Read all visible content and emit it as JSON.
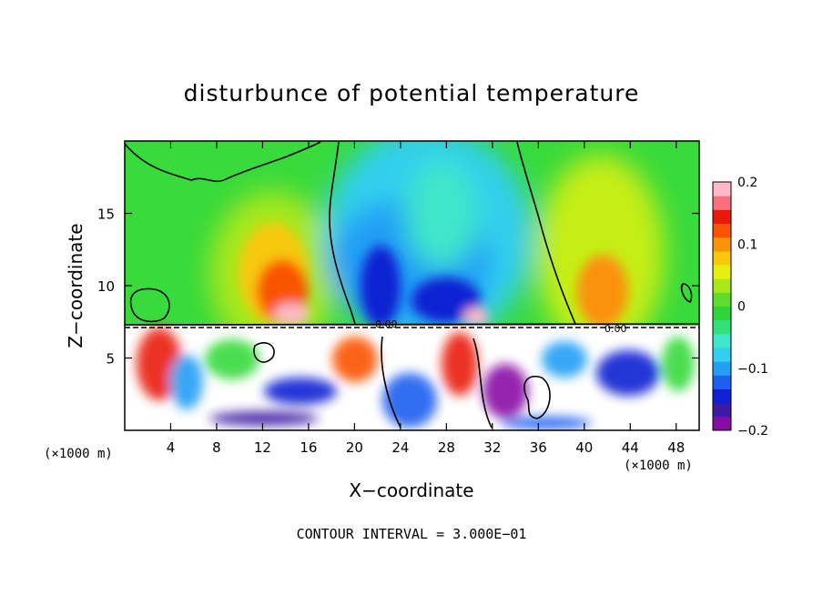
{
  "chart_data": {
    "type": "heatmap",
    "title": "disturbunce of potential temperature",
    "xlabel": "X−coordinate",
    "ylabel": "Z−coordinate",
    "x_unit_left": "(×1000 m)",
    "x_unit_right": "(×1000 m)",
    "footer": "CONTOUR INTERVAL = 3.000E−01",
    "xlim": [
      0,
      50
    ],
    "ylim": [
      0,
      20
    ],
    "x_ticks": [
      4,
      8,
      12,
      16,
      20,
      24,
      28,
      32,
      36,
      40,
      44,
      48
    ],
    "x_tick_labels": [
      "4",
      "8",
      "12",
      "16",
      "20",
      "24",
      "28",
      "32",
      "36",
      "40",
      "44",
      "48"
    ],
    "y_ticks": [
      5,
      10,
      15
    ],
    "y_tick_labels": [
      "5",
      "10",
      "15"
    ],
    "colorbar": {
      "range": [
        -0.2,
        0.2
      ],
      "labeled_ticks": [
        0.2,
        0.1,
        0,
        -0.1,
        -0.2
      ],
      "labels": [
        "0.2",
        "0.1",
        "0",
        "−0.1",
        "−0.2"
      ],
      "colors": [
        "#8a0aa6",
        "#3c1aa5",
        "#1020d2",
        "#1e5ff0",
        "#239ef5",
        "#33cfee",
        "#3fe6c9",
        "#33e07a",
        "#2fd63a",
        "#5ddc28",
        "#a8e81a",
        "#e6f00f",
        "#f7c80a",
        "#fb9208",
        "#fa5306",
        "#e91a0c",
        "#f7707c",
        "#ffb9c8"
      ]
    },
    "contour_labels": [
      "0.00",
      "0.00"
    ],
    "grid": false,
    "legend": "colorbar-right"
  }
}
